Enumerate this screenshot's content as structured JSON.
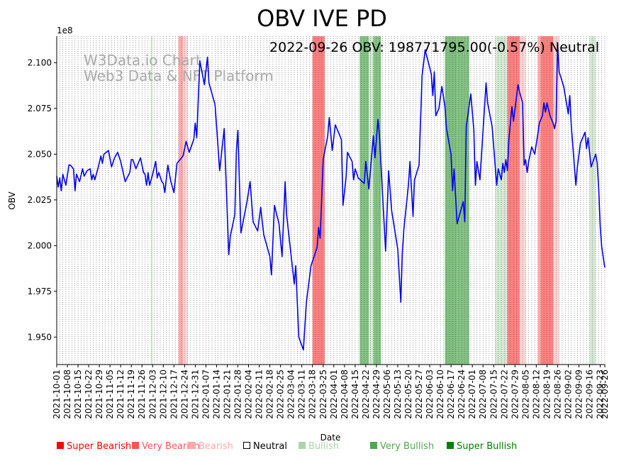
{
  "chart_data": {
    "type": "line",
    "title": "OBV IVE PD",
    "annotation": "2022-09-26 OBV: 198771795.00(-0.57%) Neutral",
    "watermark": [
      "W3Data.io Chart",
      "Web3 Data & NFT Platform"
    ],
    "xlabel": "Date",
    "ylabel": "OBV",
    "y_multiplier_label": "1e8",
    "ylim": [
      1.935,
      2.1145
    ],
    "yticks": [
      1.95,
      1.975,
      2.0,
      2.025,
      2.05,
      2.075,
      2.1
    ],
    "ytick_labels": [
      "1.950",
      "1.975",
      "2.000",
      "2.025",
      "2.050",
      "2.075",
      "2.100"
    ],
    "x_start": "2021-10-01",
    "x_end": "2022-09-26",
    "xtick_labels": [
      "2021-10-01",
      "2021-10-08",
      "2021-10-15",
      "2021-10-22",
      "2021-10-29",
      "2021-11-05",
      "2021-11-12",
      "2021-11-19",
      "2021-11-26",
      "2021-12-03",
      "2021-12-10",
      "2021-12-17",
      "2021-12-24",
      "2021-12-31",
      "2022-01-07",
      "2022-01-14",
      "2022-01-21",
      "2022-01-28",
      "2022-02-04",
      "2022-02-11",
      "2022-02-18",
      "2022-02-25",
      "2022-03-04",
      "2022-03-11",
      "2022-03-18",
      "2022-03-25",
      "2022-04-01",
      "2022-04-08",
      "2022-04-15",
      "2022-04-22",
      "2022-04-29",
      "2022-05-06",
      "2022-05-13",
      "2022-05-20",
      "2022-05-27",
      "2022-06-03",
      "2022-06-10",
      "2022-06-17",
      "2022-06-24",
      "2022-07-01",
      "2022-07-08",
      "2022-07-15",
      "2022-07-22",
      "2022-07-29",
      "2022-08-05",
      "2022-08-12",
      "2022-08-19",
      "2022-08-26",
      "2022-09-02",
      "2022-09-09",
      "2022-09-16",
      "2022-09-23",
      "2022-09-26"
    ],
    "series": [
      {
        "name": "OBV",
        "color": "#0000ee",
        "points": [
          [
            "2021-10-01",
            2.038
          ],
          [
            "2021-10-02",
            2.032
          ],
          [
            "2021-10-03",
            2.037
          ],
          [
            "2021-10-04",
            2.03
          ],
          [
            "2021-10-05",
            2.039
          ],
          [
            "2021-10-07",
            2.033
          ],
          [
            "2021-10-09",
            2.044
          ],
          [
            "2021-10-10",
            2.044
          ],
          [
            "2021-10-12",
            2.042
          ],
          [
            "2021-10-13",
            2.03
          ],
          [
            "2021-10-14",
            2.039
          ],
          [
            "2021-10-16",
            2.035
          ],
          [
            "2021-10-18",
            2.042
          ],
          [
            "2021-10-19",
            2.038
          ],
          [
            "2021-10-21",
            2.041
          ],
          [
            "2021-10-23",
            2.042
          ],
          [
            "2021-10-24",
            2.036
          ],
          [
            "2021-10-25",
            2.039
          ],
          [
            "2021-10-26",
            2.036
          ],
          [
            "2021-10-28",
            2.042
          ],
          [
            "2021-10-30",
            2.049
          ],
          [
            "2021-10-31",
            2.045
          ],
          [
            "2021-11-01",
            2.05
          ],
          [
            "2021-11-04",
            2.052
          ],
          [
            "2021-11-06",
            2.043
          ],
          [
            "2021-11-08",
            2.048
          ],
          [
            "2021-11-10",
            2.051
          ],
          [
            "2021-11-12",
            2.046
          ],
          [
            "2021-11-15",
            2.035
          ],
          [
            "2021-11-18",
            2.04
          ],
          [
            "2021-11-19",
            2.047
          ],
          [
            "2021-11-20",
            2.047
          ],
          [
            "2021-11-22",
            2.042
          ],
          [
            "2021-11-25",
            2.048
          ],
          [
            "2021-11-27",
            2.04
          ],
          [
            "2021-11-28",
            2.039
          ],
          [
            "2021-11-29",
            2.033
          ],
          [
            "2021-11-30",
            2.04
          ],
          [
            "2021-12-01",
            2.033
          ],
          [
            "2021-12-03",
            2.039
          ],
          [
            "2021-12-05",
            2.046
          ],
          [
            "2021-12-06",
            2.037
          ],
          [
            "2021-12-07",
            2.04
          ],
          [
            "2021-12-09",
            2.035
          ],
          [
            "2021-12-10",
            2.034
          ],
          [
            "2021-12-11",
            2.029
          ],
          [
            "2021-12-13",
            2.044
          ],
          [
            "2021-12-15",
            2.035
          ],
          [
            "2021-12-17",
            2.029
          ],
          [
            "2021-12-19",
            2.045
          ],
          [
            "2021-12-23",
            2.049
          ],
          [
            "2021-12-25",
            2.057
          ],
          [
            "2021-12-27",
            2.051
          ],
          [
            "2021-12-30",
            2.058
          ],
          [
            "2021-12-31",
            2.067
          ],
          [
            "2022-01-01",
            2.059
          ],
          [
            "2022-01-03",
            2.101
          ],
          [
            "2022-01-06",
            2.088
          ],
          [
            "2022-01-08",
            2.103
          ],
          [
            "2022-01-09",
            2.089
          ],
          [
            "2022-01-13",
            2.077
          ],
          [
            "2022-01-14",
            2.065
          ],
          [
            "2022-01-16",
            2.041
          ],
          [
            "2022-01-18",
            2.056
          ],
          [
            "2022-01-19",
            2.064
          ],
          [
            "2022-01-22",
            1.995
          ],
          [
            "2022-01-23",
            2.005
          ],
          [
            "2022-01-26",
            2.017
          ],
          [
            "2022-01-27",
            2.052
          ],
          [
            "2022-01-28",
            2.063
          ],
          [
            "2022-01-30",
            2.007
          ],
          [
            "2022-02-03",
            2.024
          ],
          [
            "2022-02-05",
            2.035
          ],
          [
            "2022-02-07",
            2.013
          ],
          [
            "2022-02-10",
            2.008
          ],
          [
            "2022-02-12",
            2.021
          ],
          [
            "2022-02-13",
            2.013
          ],
          [
            "2022-02-14",
            2.006
          ],
          [
            "2022-02-18",
            1.994
          ],
          [
            "2022-02-19",
            1.984
          ],
          [
            "2022-02-21",
            2.022
          ],
          [
            "2022-02-24",
            2.012
          ],
          [
            "2022-02-26",
            1.994
          ],
          [
            "2022-02-28",
            2.035
          ],
          [
            "2022-03-01",
            2.017
          ],
          [
            "2022-03-06",
            1.979
          ],
          [
            "2022-03-07",
            1.989
          ],
          [
            "2022-03-09",
            1.95
          ],
          [
            "2022-03-12",
            1.943
          ],
          [
            "2022-03-14",
            1.969
          ],
          [
            "2022-03-17",
            1.989
          ],
          [
            "2022-03-21",
            1.999
          ],
          [
            "2022-03-22",
            2.01
          ],
          [
            "2022-03-23",
            2.004
          ],
          [
            "2022-03-25",
            2.047
          ],
          [
            "2022-03-28",
            2.06
          ],
          [
            "2022-03-29",
            2.07
          ],
          [
            "2022-03-31",
            2.052
          ],
          [
            "2022-04-02",
            2.066
          ],
          [
            "2022-04-06",
            2.058
          ],
          [
            "2022-04-07",
            2.022
          ],
          [
            "2022-04-09",
            2.037
          ],
          [
            "2022-04-10",
            2.051
          ],
          [
            "2022-04-13",
            2.046
          ],
          [
            "2022-04-14",
            2.036
          ],
          [
            "2022-04-15",
            2.042
          ],
          [
            "2022-04-17",
            2.037
          ],
          [
            "2022-04-21",
            2.034
          ],
          [
            "2022-04-22",
            2.046
          ],
          [
            "2022-04-24",
            2.031
          ],
          [
            "2022-04-27",
            2.06
          ],
          [
            "2022-04-28",
            2.048
          ],
          [
            "2022-04-30",
            2.069
          ],
          [
            "2022-05-01",
            2.06
          ],
          [
            "2022-05-05",
            1.997
          ],
          [
            "2022-05-07",
            2.041
          ],
          [
            "2022-05-09",
            2.019
          ],
          [
            "2022-05-13",
            1.998
          ],
          [
            "2022-05-15",
            1.969
          ],
          [
            "2022-05-16",
            1.996
          ],
          [
            "2022-05-17",
            2.009
          ],
          [
            "2022-05-20",
            2.033
          ],
          [
            "2022-05-21",
            2.046
          ],
          [
            "2022-05-23",
            2.016
          ],
          [
            "2022-05-24",
            2.036
          ],
          [
            "2022-05-27",
            2.044
          ],
          [
            "2022-05-29",
            2.093
          ],
          [
            "2022-05-31",
            2.107
          ],
          [
            "2022-06-04",
            2.094
          ],
          [
            "2022-06-05",
            2.082
          ],
          [
            "2022-06-06",
            2.095
          ],
          [
            "2022-06-07",
            2.071
          ],
          [
            "2022-06-09",
            2.075
          ],
          [
            "2022-06-11",
            2.087
          ],
          [
            "2022-06-13",
            2.076
          ],
          [
            "2022-06-14",
            2.064
          ],
          [
            "2022-06-17",
            2.05
          ],
          [
            "2022-06-18",
            2.03
          ],
          [
            "2022-06-19",
            2.042
          ],
          [
            "2022-06-21",
            2.012
          ],
          [
            "2022-06-25",
            2.024
          ],
          [
            "2022-06-26",
            2.013
          ],
          [
            "2022-06-27",
            2.065
          ],
          [
            "2022-06-30",
            2.083
          ],
          [
            "2022-07-02",
            2.063
          ],
          [
            "2022-07-03",
            2.033
          ],
          [
            "2022-07-04",
            2.046
          ],
          [
            "2022-07-06",
            2.036
          ],
          [
            "2022-07-10",
            2.089
          ],
          [
            "2022-07-11",
            2.078
          ],
          [
            "2022-07-14",
            2.065
          ],
          [
            "2022-07-17",
            2.033
          ],
          [
            "2022-07-18",
            2.042
          ],
          [
            "2022-07-20",
            2.036
          ],
          [
            "2022-07-21",
            2.045
          ],
          [
            "2022-07-22",
            2.04
          ],
          [
            "2022-07-23",
            2.047
          ],
          [
            "2022-07-24",
            2.041
          ],
          [
            "2022-07-25",
            2.058
          ],
          [
            "2022-07-27",
            2.076
          ],
          [
            "2022-07-28",
            2.068
          ],
          [
            "2022-07-31",
            2.088
          ],
          [
            "2022-08-01",
            2.084
          ],
          [
            "2022-08-03",
            2.078
          ],
          [
            "2022-08-04",
            2.044
          ],
          [
            "2022-08-05",
            2.047
          ],
          [
            "2022-08-06",
            2.04
          ],
          [
            "2022-08-07",
            2.046
          ],
          [
            "2022-08-09",
            2.054
          ],
          [
            "2022-08-11",
            2.05
          ],
          [
            "2022-08-13",
            2.061
          ],
          [
            "2022-08-14",
            2.067
          ],
          [
            "2022-08-16",
            2.071
          ],
          [
            "2022-08-17",
            2.078
          ],
          [
            "2022-08-18",
            2.073
          ],
          [
            "2022-08-19",
            2.078
          ],
          [
            "2022-08-21",
            2.071
          ],
          [
            "2022-08-23",
            2.067
          ],
          [
            "2022-08-24",
            2.064
          ],
          [
            "2022-08-25",
            2.068
          ],
          [
            "2022-08-26",
            2.11
          ],
          [
            "2022-08-27",
            2.095
          ],
          [
            "2022-08-30",
            2.087
          ],
          [
            "2022-09-02",
            2.072
          ],
          [
            "2022-09-03",
            2.082
          ],
          [
            "2022-09-04",
            2.065
          ],
          [
            "2022-09-07",
            2.033
          ],
          [
            "2022-09-08",
            2.043
          ],
          [
            "2022-09-10",
            2.056
          ],
          [
            "2022-09-13",
            2.062
          ],
          [
            "2022-09-14",
            2.053
          ],
          [
            "2022-09-15",
            2.059
          ],
          [
            "2022-09-16",
            2.051
          ],
          [
            "2022-09-17",
            2.043
          ],
          [
            "2022-09-20",
            2.05
          ],
          [
            "2022-09-21",
            2.045
          ],
          [
            "2022-09-22",
            2.031
          ],
          [
            "2022-09-23",
            2.01
          ],
          [
            "2022-09-24",
            1.999
          ],
          [
            "2022-09-26",
            1.988
          ]
        ]
      }
    ],
    "signal_bands": [
      {
        "start": "2021-12-02",
        "end": "2021-12-03",
        "level": "Bullish"
      },
      {
        "start": "2021-12-20",
        "end": "2021-12-23",
        "level": "Very Bearish"
      },
      {
        "start": "2021-12-23",
        "end": "2021-12-26",
        "level": "Bearish"
      },
      {
        "start": "2022-03-18",
        "end": "2022-03-26",
        "level": "Super Bearish"
      },
      {
        "start": "2022-04-18",
        "end": "2022-04-24",
        "level": "Very Bullish"
      },
      {
        "start": "2022-04-24",
        "end": "2022-04-27",
        "level": "Bullish"
      },
      {
        "start": "2022-04-27",
        "end": "2022-05-02",
        "level": "Very Bullish"
      },
      {
        "start": "2022-06-13",
        "end": "2022-06-21",
        "level": "Super Bullish"
      },
      {
        "start": "2022-06-21",
        "end": "2022-06-29",
        "level": "Very Bullish"
      },
      {
        "start": "2022-07-16",
        "end": "2022-07-24",
        "level": "Bullish"
      },
      {
        "start": "2022-07-24",
        "end": "2022-08-01",
        "level": "Super Bearish"
      },
      {
        "start": "2022-08-01",
        "end": "2022-08-05",
        "level": "Bearish"
      },
      {
        "start": "2022-08-13",
        "end": "2022-08-15",
        "level": "Very Bearish"
      },
      {
        "start": "2022-08-15",
        "end": "2022-08-23",
        "level": "Super Bearish"
      },
      {
        "start": "2022-08-23",
        "end": "2022-08-27",
        "level": "Bearish"
      },
      {
        "start": "2022-09-16",
        "end": "2022-09-20",
        "level": "Bullish"
      }
    ],
    "legend": [
      {
        "label": "Super Bearish",
        "color": "#ff0000",
        "level": "Super Bearish"
      },
      {
        "label": "Very Bearish",
        "color": "#ff5555",
        "level": "Very Bearish"
      },
      {
        "label": "Bearish",
        "color": "#ffaaaa",
        "level": "Bearish"
      },
      {
        "label": "Neutral",
        "color": "#000000",
        "level": "Neutral"
      },
      {
        "label": "Bullish",
        "color": "#aad4aa",
        "level": "Bullish"
      },
      {
        "label": "Very Bullish",
        "color": "#4fa84f",
        "level": "Very Bullish"
      },
      {
        "label": "Super Bullish",
        "color": "#008000",
        "level": "Super Bullish"
      }
    ],
    "band_colors": {
      "Super Bearish": "#ff0000",
      "Very Bearish": "#ff5555",
      "Bearish": "#ffaaaa",
      "Bullish": "#aad4aa",
      "Very Bullish": "#4fa84f",
      "Super Bullish": "#008000"
    },
    "band_opacity": {
      "Super Bearish": 0.5,
      "Very Bearish": 0.5,
      "Bearish": 0.5,
      "Bullish": 0.5,
      "Very Bullish": 0.7,
      "Super Bullish": 0.5
    }
  }
}
